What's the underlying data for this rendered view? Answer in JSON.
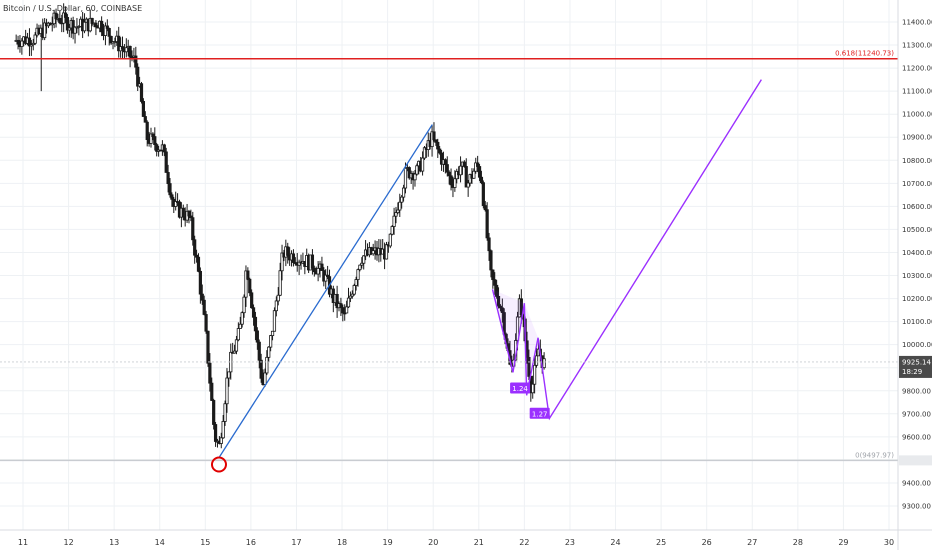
{
  "symbol": "Bitcoin / U.S. Dollar, 60, COINBASE",
  "colors": {
    "candle": "#1a1a1a",
    "grid": "#eef1f4",
    "fib_top": "#e02020",
    "fib_bottom": "#c9ccd1",
    "trend_blue": "#2a6bcf",
    "pattern_purple": "#9b30ff",
    "circle": "#e00000",
    "price_tag": "#4a4a4a"
  },
  "chart_data": {
    "type": "candlestick",
    "y_ticks": [
      "11400.00",
      "11300.00",
      "11200.00",
      "11100.00",
      "11000.00",
      "10900.00",
      "10800.00",
      "10700.00",
      "10600.00",
      "10500.00",
      "10400.00",
      "10300.00",
      "10200.00",
      "10100.00",
      "10000.00",
      "9900.00",
      "9800.00",
      "9700.00",
      "9600.00",
      "9500.00",
      "9400.00",
      "9300.00"
    ],
    "ylim": [
      9300,
      11450
    ],
    "x_ticks": [
      "11",
      "12",
      "13",
      "14",
      "15",
      "16",
      "17",
      "18",
      "19",
      "20",
      "21",
      "22",
      "23",
      "24",
      "25",
      "26",
      "27",
      "28",
      "29",
      "30"
    ],
    "xlim": [
      10.8,
      30.2
    ],
    "grid": true,
    "price_series": {
      "name": "Bitcoin / U.S. Dollar",
      "anchors": [
        [
          10.85,
          11320
        ],
        [
          11.3,
          11330
        ],
        [
          11.8,
          11420
        ],
        [
          12.2,
          11380
        ],
        [
          12.7,
          11400
        ],
        [
          13.1,
          11310
        ],
        [
          13.5,
          11230
        ],
        [
          13.75,
          10900
        ],
        [
          14.1,
          10850
        ],
        [
          14.35,
          10600
        ],
        [
          14.7,
          10550
        ],
        [
          14.9,
          10300
        ],
        [
          15.05,
          10050
        ],
        [
          15.25,
          9600
        ],
        [
          15.35,
          9560
        ],
        [
          15.55,
          9900
        ],
        [
          15.8,
          10060
        ],
        [
          15.95,
          10350
        ],
        [
          16.15,
          10050
        ],
        [
          16.3,
          9820
        ],
        [
          16.5,
          10050
        ],
        [
          16.75,
          10400
        ],
        [
          17.05,
          10380
        ],
        [
          17.4,
          10350
        ],
        [
          17.65,
          10300
        ],
        [
          17.85,
          10200
        ],
        [
          18.1,
          10120
        ],
        [
          18.45,
          10380
        ],
        [
          18.75,
          10400
        ],
        [
          19.05,
          10400
        ],
        [
          19.25,
          10600
        ],
        [
          19.45,
          10750
        ],
        [
          19.7,
          10750
        ],
        [
          20.0,
          10900
        ],
        [
          20.2,
          10820
        ],
        [
          20.45,
          10700
        ],
        [
          20.65,
          10780
        ],
        [
          20.8,
          10700
        ],
        [
          21.0,
          10780
        ],
        [
          21.1,
          10720
        ],
        [
          21.2,
          10520
        ],
        [
          21.3,
          10300
        ],
        [
          21.55,
          10150
        ],
        [
          21.75,
          9870
        ],
        [
          21.95,
          10200
        ],
        [
          22.1,
          9950
        ],
        [
          22.2,
          9800
        ],
        [
          22.35,
          9980
        ],
        [
          22.45,
          9920
        ]
      ],
      "current_price": 9925.14
    },
    "annotations": {
      "fib_top": {
        "price": 11240.73,
        "label": "0.618(11240.73)"
      },
      "fib_bottom": {
        "price": 9497.97,
        "label": "0(9497.97)"
      },
      "blue_trendline": {
        "from": [
          15.3,
          9510
        ],
        "to": [
          19.98,
          10955
        ]
      },
      "purple_pattern": [
        [
          21.3,
          10240
        ],
        [
          21.75,
          9880
        ],
        [
          22.0,
          10180
        ],
        [
          22.05,
          9780
        ],
        [
          22.3,
          10030
        ],
        [
          22.55,
          9680
        ],
        [
          27.2,
          11150
        ]
      ],
      "ratio_labels": [
        {
          "text": "1.24",
          "at": [
            21.95,
            9810
          ]
        },
        {
          "text": "1.27",
          "at": [
            22.38,
            9700
          ]
        }
      ],
      "low_circle": {
        "at": [
          15.3,
          9480
        ]
      }
    },
    "price_tags": {
      "last": "9925.14",
      "countdown": "18:29"
    }
  }
}
